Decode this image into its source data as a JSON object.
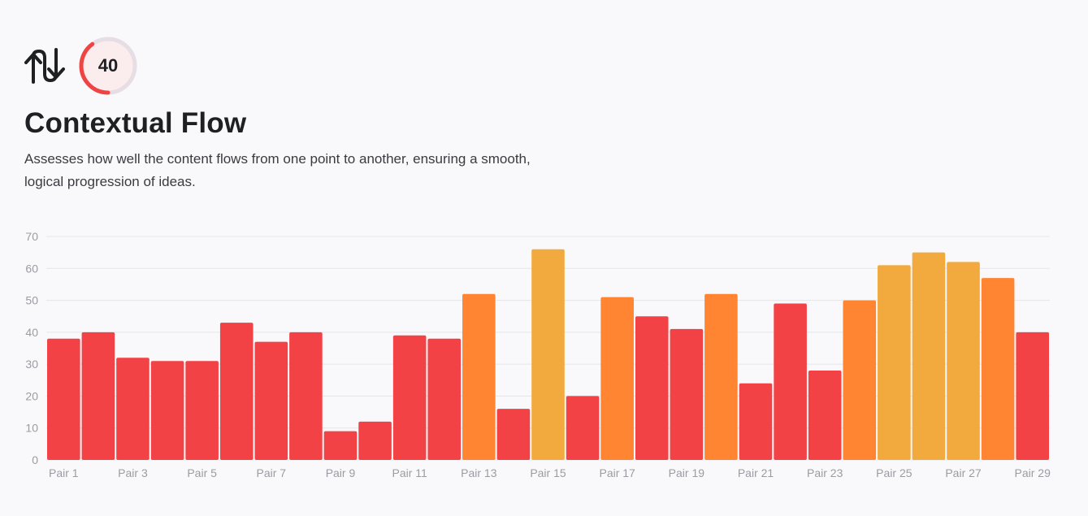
{
  "score": {
    "value": "40",
    "max": 100,
    "ring_color": "#ef4444",
    "track_color": "#e6dde5",
    "fill_color": "#fbecee"
  },
  "metric": {
    "title": "Contextual Flow",
    "description": "Assesses how well the content flows from one point to another, ensuring a smooth, logical progression of ideas."
  },
  "colors": {
    "low": "#f24246",
    "mid": "#ff8533",
    "high": "#f2a93d"
  },
  "chart_data": {
    "type": "bar",
    "title": "",
    "xlabel": "",
    "ylabel": "",
    "ylim": [
      0,
      70
    ],
    "yticks": [
      0,
      10,
      20,
      30,
      40,
      50,
      60,
      70
    ],
    "grid": true,
    "legend": "none",
    "categories": [
      "Pair 1",
      "Pair 2",
      "Pair 3",
      "Pair 4",
      "Pair 5",
      "Pair 6",
      "Pair 7",
      "Pair 8",
      "Pair 9",
      "Pair 10",
      "Pair 11",
      "Pair 12",
      "Pair 13",
      "Pair 14",
      "Pair 15",
      "Pair 16",
      "Pair 17",
      "Pair 18",
      "Pair 19",
      "Pair 20",
      "Pair 21",
      "Pair 22",
      "Pair 23",
      "Pair 24",
      "Pair 25",
      "Pair 26",
      "Pair 27",
      "Pair 28",
      "Pair 29"
    ],
    "visible_xticks": [
      "Pair 1",
      "Pair 3",
      "Pair 5",
      "Pair 7",
      "Pair 9",
      "Pair 11",
      "Pair 13",
      "Pair 15",
      "Pair 17",
      "Pair 19",
      "Pair 21",
      "Pair 23",
      "Pair 25",
      "Pair 27",
      "Pair 29"
    ],
    "values": [
      38,
      40,
      32,
      31,
      31,
      43,
      37,
      40,
      9,
      12,
      39,
      38,
      52,
      16,
      66,
      20,
      51,
      45,
      41,
      52,
      24,
      49,
      28,
      50,
      61,
      65,
      62,
      57,
      40
    ],
    "bar_levels": [
      "low",
      "low",
      "low",
      "low",
      "low",
      "low",
      "low",
      "low",
      "low",
      "low",
      "low",
      "low",
      "mid",
      "low",
      "high",
      "low",
      "mid",
      "low",
      "low",
      "mid",
      "low",
      "low",
      "low",
      "mid",
      "high",
      "high",
      "high",
      "mid",
      "low"
    ]
  }
}
